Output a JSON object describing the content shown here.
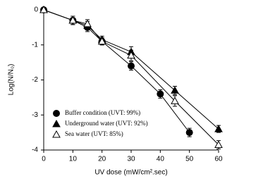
{
  "chart_data": {
    "type": "line",
    "x_label": "UV dose (mW/cm².sec)",
    "y_label": "Log(N/N₀)",
    "xlim": [
      0,
      60
    ],
    "xticks": [
      0,
      10,
      20,
      30,
      40,
      50,
      60
    ],
    "ylim": [
      -4,
      0
    ],
    "yticks": [
      0,
      -1,
      -2,
      -3,
      -4
    ],
    "legend": "lower left",
    "series": [
      {
        "name": "Buffer condition (UVT: 99%)",
        "color": "#000000",
        "marker": "circle-filled",
        "x": [
          0,
          10,
          15,
          20,
          30,
          40,
          50
        ],
        "values": [
          0,
          -0.3,
          -0.5,
          -0.9,
          -1.6,
          -2.4,
          -3.5
        ],
        "errors": [
          0.03,
          0.12,
          0.12,
          0.1,
          0.12,
          0.12,
          0.12
        ]
      },
      {
        "name": "Underground water (UVT: 92%)",
        "color": "#000000",
        "marker": "triangle-filled",
        "x": [
          0,
          10,
          15,
          20,
          30,
          45,
          60
        ],
        "values": [
          0,
          -0.3,
          -0.45,
          -0.85,
          -1.2,
          -2.3,
          -3.4
        ],
        "errors": [
          0.03,
          0.12,
          0.12,
          0.1,
          0.15,
          0.12,
          0.1
        ]
      },
      {
        "name": "Sea water (UVT: 85%)",
        "color": "#000000",
        "marker": "triangle-open",
        "x": [
          0,
          10,
          15,
          20,
          30,
          45,
          60
        ],
        "values": [
          0,
          -0.3,
          -0.4,
          -0.9,
          -1.3,
          -2.6,
          -3.85
        ],
        "errors": [
          0.03,
          0.12,
          0.12,
          0.1,
          0.15,
          0.15,
          0.12
        ]
      }
    ]
  }
}
